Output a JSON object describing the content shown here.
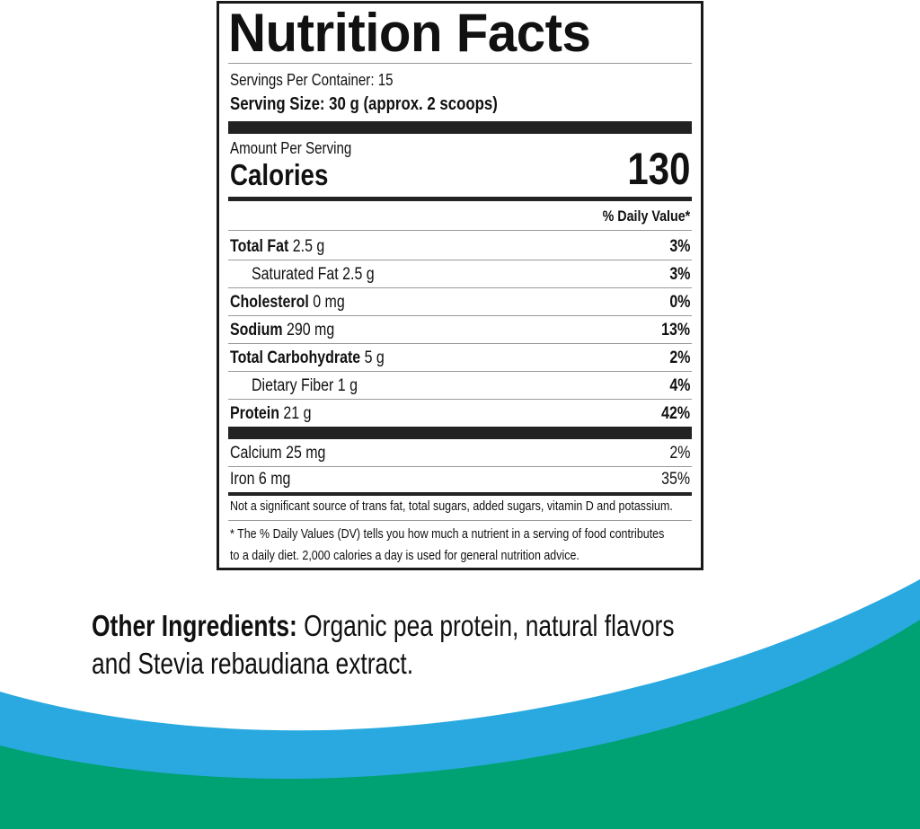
{
  "colors": {
    "blue": "#29a9e0",
    "green": "#00a172"
  },
  "label": {
    "title": "Nutrition Facts",
    "servings_per_container": "Servings Per Container: 15",
    "serving_size": "Serving Size: 30 g (approx. 2 scoops)",
    "amount_per_serving": "Amount Per Serving",
    "calories_label": "Calories",
    "calories_value": "130",
    "daily_value_header": "% Daily Value*",
    "nutrients": [
      {
        "name": "Total Fat",
        "amount": "2.5 g",
        "dv": "3%"
      },
      {
        "name": "Saturated Fat",
        "amount": "2.5 g",
        "dv": "3%"
      },
      {
        "name": "Cholesterol",
        "amount": "0 mg",
        "dv": "0%"
      },
      {
        "name": "Sodium",
        "amount": "290 mg",
        "dv": "13%"
      },
      {
        "name": "Total Carbohydrate",
        "amount": "5 g",
        "dv": "2%"
      },
      {
        "name": "Dietary Fiber",
        "amount": "1 g",
        "dv": "4%"
      },
      {
        "name": "Protein",
        "amount": "21 g",
        "dv": "42%"
      }
    ],
    "minerals": [
      {
        "name": "Calcium 25 mg",
        "dv": "2%"
      },
      {
        "name": "Iron 6 mg",
        "dv": "35%"
      }
    ],
    "not_significant": "Not a significant source of trans fat, total sugars, added sugars, vitamin D and potassium.",
    "footnote_1": "* The % Daily Values (DV) tells you how much a nutrient in a serving of food contributes",
    "footnote_2": "to a daily diet. 2,000 calories a day is used for general nutrition advice."
  },
  "ingredients": {
    "heading": "Other Ingredients:",
    "text": " Organic pea protein, natural flavors",
    "text_2": "and Stevia rebaudiana extract."
  }
}
